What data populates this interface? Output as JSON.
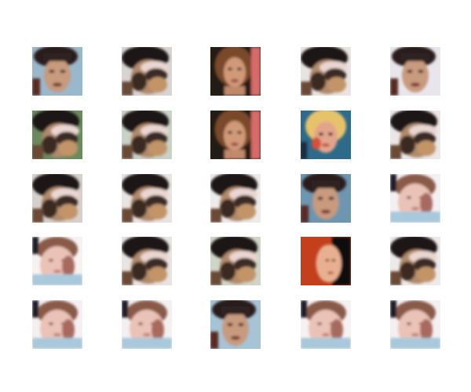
{
  "figure": {
    "rows": 5,
    "columns": 5,
    "cells": [
      {
        "variant": "dark-hair-boy",
        "bg": "#9ab8cc"
      },
      {
        "variant": "blended-goggles",
        "bg": "#d8d4d2"
      },
      {
        "variant": "long-brown-hair",
        "bg": "#2a1e18"
      },
      {
        "variant": "blended-goggles",
        "bg": "#e8e4e2"
      },
      {
        "variant": "dark-hair-boy",
        "bg": "#e8e6ec"
      },
      {
        "variant": "blended-goggles",
        "bg": "#6a8a5e"
      },
      {
        "variant": "blended-goggles",
        "bg": "#c8d2c6"
      },
      {
        "variant": "long-brown-hair",
        "bg": "#2a1e18"
      },
      {
        "variant": "blonde-hair",
        "bg": "#2e6a8a"
      },
      {
        "variant": "blended-goggles",
        "bg": "#ece6e6"
      },
      {
        "variant": "blended-goggles",
        "bg": "#d6d0cc"
      },
      {
        "variant": "blended-goggles",
        "bg": "#e8e4e2"
      },
      {
        "variant": "blended-goggles",
        "bg": "#ecebe9"
      },
      {
        "variant": "dark-hair-boy",
        "bg": "#6e96b0"
      },
      {
        "variant": "pale-round-face",
        "bg": "#f4f0f2"
      },
      {
        "variant": "pale-round-face",
        "bg": "#f6f2f2"
      },
      {
        "variant": "blended-goggles",
        "bg": "#e8e4e2"
      },
      {
        "variant": "blended-goggles",
        "bg": "#cfd6c8"
      },
      {
        "variant": "orange-red-side",
        "bg": "#c4401a"
      },
      {
        "variant": "blended-goggles",
        "bg": "#eeeaea"
      },
      {
        "variant": "pale-round-face",
        "bg": "#f4f0f2"
      },
      {
        "variant": "pale-round-face",
        "bg": "#f4f0f2"
      },
      {
        "variant": "dark-hair-boy",
        "bg": "#a6c4d6"
      },
      {
        "variant": "pale-round-face",
        "bg": "#f6f2f2"
      },
      {
        "variant": "pale-round-face",
        "bg": "#f4f0f2"
      }
    ]
  }
}
